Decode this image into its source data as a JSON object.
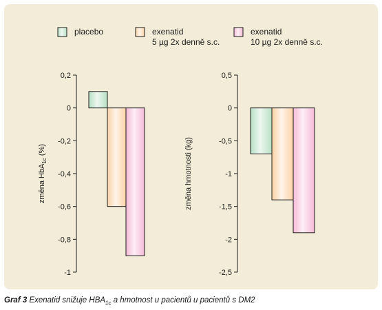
{
  "legend": [
    {
      "label": "placebo",
      "label2": "",
      "color": "#b8e0c4"
    },
    {
      "label": "exenatid",
      "label2": "5 µg 2x denně s.c.",
      "color": "#fbd2a6"
    },
    {
      "label": "exenatid",
      "label2": "10 µg 2x denně s.c.",
      "color": "#f6b9d6"
    }
  ],
  "chart_data": [
    {
      "type": "bar",
      "ylabel_pre": "změna HbA",
      "ylabel_sub": "1c",
      "ylabel_post": " (%)",
      "ylim": [
        -1,
        0.2
      ],
      "yticks": [
        0.2,
        0,
        -0.2,
        -0.4,
        -0.6,
        -0.8,
        -1
      ],
      "ytick_labels": [
        "0,2",
        "0",
        "-0,2",
        "-0,4",
        "-0,6",
        "-0,8",
        "-1"
      ],
      "series": [
        {
          "values": [
            0.1
          ]
        },
        {
          "values": [
            -0.6
          ]
        },
        {
          "values": [
            -0.9
          ]
        }
      ]
    },
    {
      "type": "bar",
      "ylabel": "změna hmotnosti (kg)",
      "ylim": [
        -2.5,
        0.5
      ],
      "yticks": [
        0.5,
        0,
        -0.5,
        -1,
        -1.5,
        -2,
        -2.5
      ],
      "ytick_labels": [
        "0,5",
        "0",
        "-0,5",
        "-1",
        "-1,5",
        "-2",
        "-2,5"
      ],
      "series": [
        {
          "values": [
            -0.7
          ]
        },
        {
          "values": [
            -1.4
          ]
        },
        {
          "values": [
            -1.9
          ]
        }
      ]
    }
  ],
  "caption": {
    "label": "Graf 3",
    "pre": " Exenatid snižuje HBA",
    "sub": "1c",
    "post": " a hmotnost u pacientů u pacientů s DM2"
  }
}
